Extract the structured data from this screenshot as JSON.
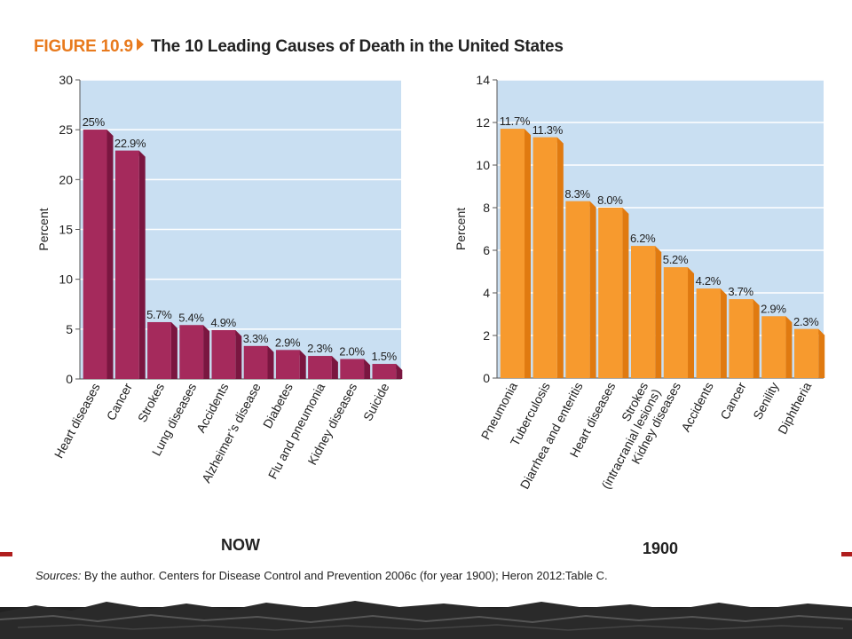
{
  "figure": {
    "label": "FIGURE 10.9",
    "title": "The 10 Leading Causes of Death in the United States"
  },
  "sources": {
    "lead": "Sources:",
    "text": " By the author. Centers for Disease Control and Prevention 2006c (for year 1900); Heron 2012:Table C."
  },
  "colors": {
    "now_bar": "#a52a5c",
    "now_bar_dark": "#7a1640",
    "y1900_bar": "#f79a2e",
    "y1900_bar_dark": "#e07a10",
    "plot_bg": "#c9dff2",
    "figure_label": "#e87a1d"
  },
  "chart_data": [
    {
      "type": "bar",
      "title": "NOW",
      "ylabel": "Percent",
      "ylim": [
        0,
        30
      ],
      "yticks": [
        0,
        5,
        10,
        15,
        20,
        25,
        30
      ],
      "grid": true,
      "categories": [
        "Heart diseases",
        "Cancer",
        "Strokes",
        "Lung diseases",
        "Accidents",
        "Alzheimer’s disease",
        "Diabetes",
        "Flu and pneumonia",
        "Kidney diseases",
        "Suicide"
      ],
      "values": [
        25,
        22.9,
        5.7,
        5.4,
        4.9,
        3.3,
        2.9,
        2.3,
        2.0,
        1.5
      ],
      "data_labels": [
        "25%",
        "22.9%",
        "5.7%",
        "5.4%",
        "4.9%",
        "3.3%",
        "2.9%",
        "2.3%",
        "2.0%",
        "1.5%"
      ]
    },
    {
      "type": "bar",
      "title": "1900",
      "ylabel": "Percent",
      "ylim": [
        0,
        14
      ],
      "yticks": [
        0,
        2,
        4,
        6,
        8,
        10,
        12,
        14
      ],
      "grid": true,
      "categories": [
        "Pneumonia",
        "Tuberculosis",
        "Diarrhea and enteritis",
        "Heart diseases",
        "Strokes (intracranial lesions)",
        "Kidney diseases",
        "Accidents",
        "Cancer",
        "Senility",
        "Diphtheria"
      ],
      "category_lines": [
        [
          "Pneumonia"
        ],
        [
          "Tuberculosis"
        ],
        [
          "Diarrhea and enteritis"
        ],
        [
          "Heart diseases"
        ],
        [
          "Strokes",
          "(intracranial lesions)"
        ],
        [
          "Kidney diseases"
        ],
        [
          "Accidents"
        ],
        [
          "Cancer"
        ],
        [
          "Senility"
        ],
        [
          "Diphtheria"
        ]
      ],
      "values": [
        11.7,
        11.3,
        8.3,
        8.0,
        6.2,
        5.2,
        4.2,
        3.7,
        2.9,
        2.3
      ],
      "data_labels": [
        "11.7%",
        "11.3%",
        "8.3%",
        "8.0%",
        "6.2%",
        "5.2%",
        "4.2%",
        "3.7%",
        "2.9%",
        "2.3%"
      ]
    }
  ]
}
